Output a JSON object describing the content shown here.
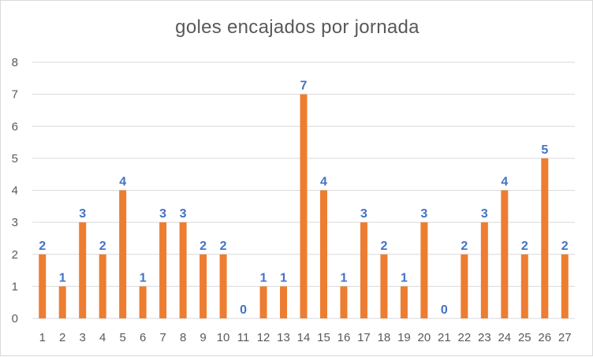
{
  "chart_data": {
    "type": "bar",
    "title": "goles encajados por jornada",
    "xlabel": "",
    "ylabel": "",
    "categories": [
      "1",
      "2",
      "3",
      "4",
      "5",
      "6",
      "7",
      "8",
      "9",
      "10",
      "11",
      "12",
      "13",
      "14",
      "15",
      "16",
      "17",
      "18",
      "19",
      "20",
      "21",
      "22",
      "23",
      "24",
      "25",
      "26",
      "27"
    ],
    "values": [
      2,
      1,
      3,
      2,
      4,
      1,
      3,
      3,
      2,
      2,
      0,
      1,
      1,
      7,
      4,
      1,
      3,
      2,
      1,
      3,
      0,
      2,
      3,
      4,
      2,
      5,
      2
    ],
    "ylim": [
      0,
      8
    ],
    "yticks": [
      0,
      1,
      2,
      3,
      4,
      5,
      6,
      7,
      8
    ],
    "grid": true,
    "legend": "none",
    "data_labels": true,
    "colors": {
      "bar": "#ed7d31",
      "data_label": "#4472c4",
      "grid": "#d9d9d9",
      "tick_text": "#595959",
      "title_text": "#595959"
    }
  }
}
